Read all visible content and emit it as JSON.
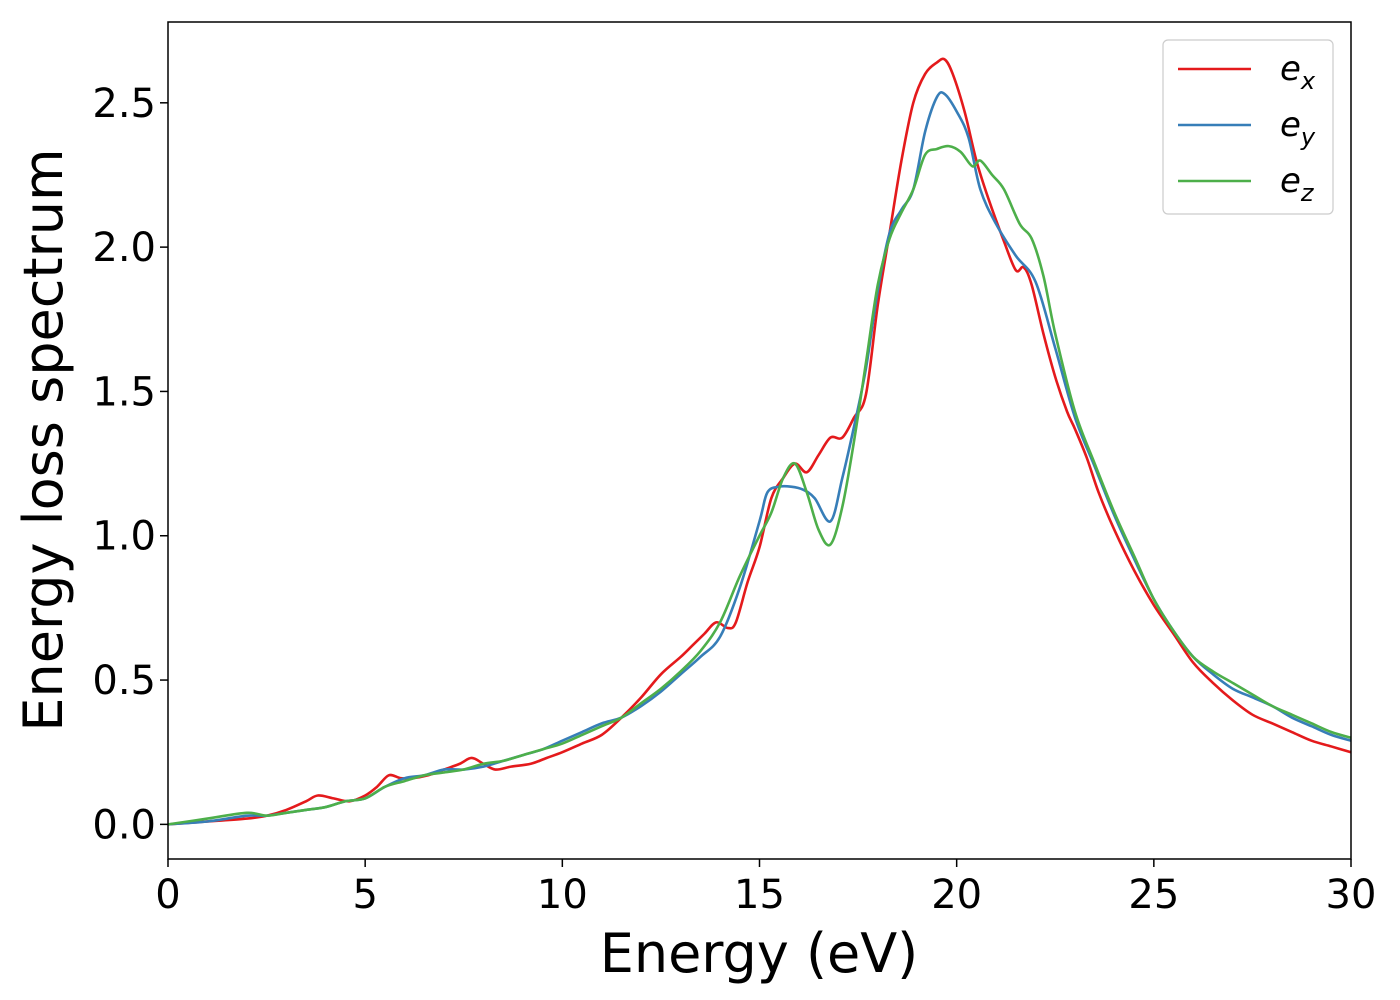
{
  "chart_data": {
    "type": "line",
    "title": "",
    "xlabel": "Energy (eV)",
    "ylabel": "Energy loss spectrum",
    "xlim": [
      0,
      30
    ],
    "ylim": [
      -0.12,
      2.78
    ],
    "xticks": [
      0,
      5,
      10,
      15,
      20,
      25,
      30
    ],
    "xtick_labels": [
      "0",
      "5",
      "10",
      "15",
      "20",
      "25",
      "30"
    ],
    "yticks": [
      0.0,
      0.5,
      1.0,
      1.5,
      2.0,
      2.5
    ],
    "ytick_labels": [
      "0.0",
      "0.5",
      "1.0",
      "1.5",
      "2.0",
      "2.5"
    ],
    "grid": false,
    "legend_position": "top-right",
    "series": [
      {
        "name": "e_x",
        "label_main": "e",
        "label_sub": "x",
        "color": "#e41a1c",
        "x": [
          0,
          1,
          2,
          2.5,
          3,
          3.5,
          3.8,
          4.2,
          4.6,
          5,
          5.3,
          5.6,
          5.9,
          6.2,
          6.6,
          7,
          7.4,
          7.7,
          8,
          8.3,
          8.7,
          9.2,
          9.6,
          10,
          10.5,
          11,
          11.5,
          12,
          12.5,
          13,
          13.3,
          13.6,
          13.9,
          14.2,
          14.4,
          14.7,
          15,
          15.3,
          15.6,
          15.9,
          16.2,
          16.5,
          16.8,
          17.1,
          17.4,
          17.7,
          18,
          18.3,
          18.6,
          18.9,
          19.2,
          19.5,
          19.7,
          19.9,
          20.2,
          20.5,
          20.8,
          21.2,
          21.5,
          21.7,
          21.9,
          22.2,
          22.5,
          22.8,
          23,
          23.3,
          23.6,
          24,
          24.5,
          25,
          25.5,
          26,
          26.5,
          27,
          27.5,
          28,
          28.5,
          29,
          29.5,
          30
        ],
        "y": [
          0,
          0.01,
          0.02,
          0.03,
          0.05,
          0.08,
          0.1,
          0.09,
          0.08,
          0.1,
          0.13,
          0.17,
          0.16,
          0.16,
          0.17,
          0.19,
          0.21,
          0.23,
          0.21,
          0.19,
          0.2,
          0.21,
          0.23,
          0.25,
          0.28,
          0.31,
          0.37,
          0.44,
          0.52,
          0.58,
          0.62,
          0.66,
          0.7,
          0.68,
          0.7,
          0.84,
          0.96,
          1.13,
          1.2,
          1.25,
          1.22,
          1.28,
          1.34,
          1.34,
          1.41,
          1.49,
          1.8,
          2.05,
          2.3,
          2.5,
          2.6,
          2.64,
          2.65,
          2.6,
          2.47,
          2.3,
          2.17,
          2.02,
          1.92,
          1.93,
          1.87,
          1.7,
          1.55,
          1.43,
          1.37,
          1.27,
          1.15,
          1.02,
          0.88,
          0.76,
          0.66,
          0.56,
          0.49,
          0.43,
          0.38,
          0.35,
          0.32,
          0.29,
          0.27,
          0.25
        ]
      },
      {
        "name": "e_y",
        "label_main": "e",
        "label_sub": "y",
        "color": "#377eb8",
        "x": [
          0,
          1,
          2,
          2.5,
          3,
          3.5,
          4,
          4.5,
          5,
          5.5,
          6,
          6.5,
          7,
          7.5,
          8,
          8.5,
          9,
          9.5,
          10,
          10.5,
          11,
          11.5,
          12,
          12.5,
          13,
          13.5,
          14,
          14.5,
          15,
          15.2,
          15.5,
          15.8,
          16.1,
          16.4,
          16.8,
          17.1,
          17.4,
          17.7,
          18,
          18.3,
          18.6,
          18.9,
          19.2,
          19.5,
          19.7,
          20,
          20.3,
          20.6,
          21,
          21.5,
          22,
          22.5,
          23,
          23.5,
          24,
          24.5,
          25,
          25.5,
          26,
          26.5,
          27,
          27.5,
          28,
          28.5,
          29,
          29.5,
          30
        ],
        "y": [
          0,
          0.01,
          0.03,
          0.03,
          0.04,
          0.05,
          0.06,
          0.08,
          0.09,
          0.13,
          0.16,
          0.17,
          0.19,
          0.19,
          0.2,
          0.22,
          0.24,
          0.26,
          0.29,
          0.32,
          0.35,
          0.37,
          0.41,
          0.46,
          0.52,
          0.58,
          0.65,
          0.82,
          1.05,
          1.15,
          1.17,
          1.17,
          1.16,
          1.13,
          1.05,
          1.2,
          1.38,
          1.58,
          1.85,
          2.05,
          2.13,
          2.2,
          2.4,
          2.52,
          2.53,
          2.47,
          2.38,
          2.2,
          2.08,
          1.97,
          1.88,
          1.65,
          1.41,
          1.24,
          1.07,
          0.92,
          0.78,
          0.67,
          0.58,
          0.52,
          0.47,
          0.44,
          0.41,
          0.37,
          0.34,
          0.31,
          0.29
        ]
      },
      {
        "name": "e_z",
        "label_main": "e",
        "label_sub": "z",
        "color": "#4daf4a",
        "x": [
          0,
          1,
          2,
          2.5,
          3,
          3.5,
          4,
          4.5,
          5,
          5.5,
          6,
          6.5,
          7,
          7.5,
          8,
          8.5,
          9,
          9.5,
          10,
          10.5,
          11,
          11.5,
          12,
          12.5,
          13,
          13.5,
          14,
          14.5,
          15,
          15.3,
          15.6,
          15.9,
          16.2,
          16.5,
          16.8,
          17.1,
          17.4,
          17.7,
          18,
          18.3,
          18.6,
          18.9,
          19.2,
          19.5,
          19.8,
          20.1,
          20.4,
          20.6,
          20.9,
          21.2,
          21.6,
          21.9,
          22.2,
          22.5,
          23,
          23.5,
          24,
          24.5,
          25,
          25.5,
          26,
          26.5,
          27,
          27.5,
          28,
          28.5,
          29,
          29.5,
          30
        ],
        "y": [
          0,
          0.02,
          0.04,
          0.03,
          0.04,
          0.05,
          0.06,
          0.08,
          0.09,
          0.13,
          0.15,
          0.17,
          0.18,
          0.19,
          0.21,
          0.22,
          0.24,
          0.26,
          0.28,
          0.31,
          0.34,
          0.37,
          0.42,
          0.47,
          0.53,
          0.6,
          0.7,
          0.86,
          1.0,
          1.08,
          1.2,
          1.25,
          1.15,
          1.02,
          0.97,
          1.1,
          1.33,
          1.6,
          1.87,
          2.03,
          2.12,
          2.2,
          2.32,
          2.34,
          2.35,
          2.33,
          2.28,
          2.3,
          2.25,
          2.2,
          2.08,
          2.03,
          1.9,
          1.7,
          1.43,
          1.25,
          1.08,
          0.93,
          0.78,
          0.67,
          0.58,
          0.53,
          0.49,
          0.45,
          0.41,
          0.38,
          0.35,
          0.32,
          0.3
        ]
      }
    ]
  }
}
